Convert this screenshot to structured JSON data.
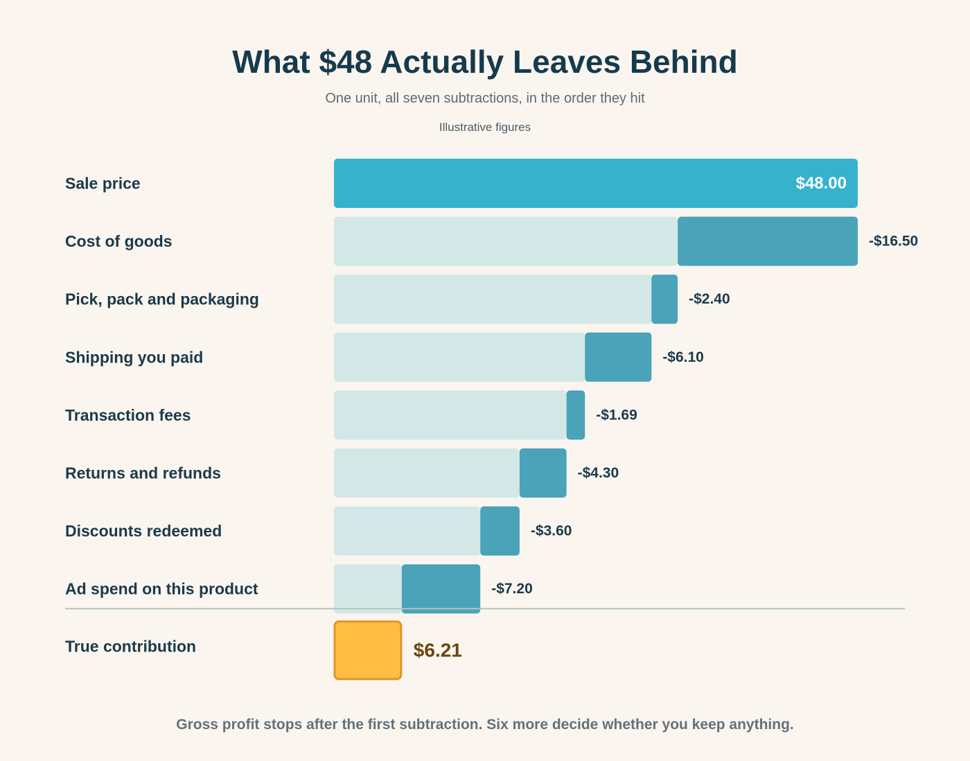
{
  "header": {
    "title": "What $48 Actually Leaves Behind",
    "subtitle": "One unit, all seven subtractions, in the order they hit",
    "note": "Illustrative figures"
  },
  "footer": {
    "text": "Gross profit stops after the first subtraction. Six more decide whether you keep anything."
  },
  "colors": {
    "start_bar": "#36b2cc",
    "subtraction_bar": "#4aa3b8",
    "remaining_bar": "#d3e8e6",
    "total_bar": "#ffbe42",
    "total_border": "#e0952a",
    "total_label": "#6b4510",
    "label_text": "#1c3a4a",
    "divider": "#b6c3c3"
  },
  "chart_data": {
    "type": "waterfall",
    "orientation": "horizontal",
    "xlim": [
      0,
      48
    ],
    "start": {
      "label": "Sale price",
      "value": 48.0,
      "value_label": "$48.00"
    },
    "steps": [
      {
        "label": "Cost of goods",
        "value": -16.5,
        "value_label": "-$16.50"
      },
      {
        "label": "Pick, pack and packaging",
        "value": -2.4,
        "value_label": "-$2.40"
      },
      {
        "label": "Shipping you paid",
        "value": -6.1,
        "value_label": "-$6.10"
      },
      {
        "label": "Transaction fees",
        "value": -1.69,
        "value_label": "-$1.69"
      },
      {
        "label": "Returns and refunds",
        "value": -4.3,
        "value_label": "-$4.30"
      },
      {
        "label": "Discounts redeemed",
        "value": -3.6,
        "value_label": "-$3.60"
      },
      {
        "label": "Ad spend on this product",
        "value": -7.2,
        "value_label": "-$7.20"
      }
    ],
    "total": {
      "label": "True contribution",
      "value": 6.21,
      "value_label": "$6.21"
    }
  }
}
